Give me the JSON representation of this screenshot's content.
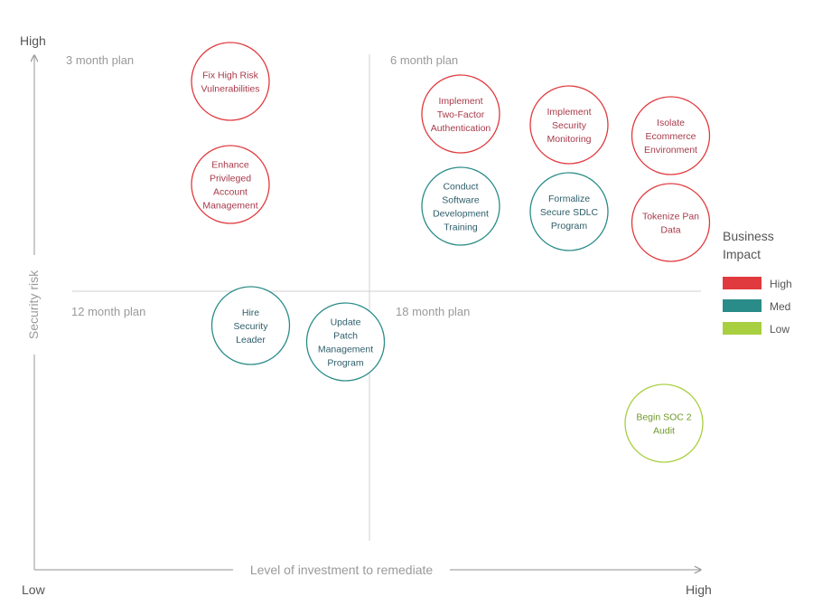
{
  "chart_data": {
    "type": "scatter",
    "xlabel": "Level of investment to remediate",
    "ylabel": "Security risk",
    "x_low": "Low",
    "x_high": "High",
    "y_high": "High",
    "xlim": [
      0,
      100
    ],
    "ylim": [
      0,
      100
    ],
    "grid": false,
    "quadrants": [
      {
        "label": "3 month plan",
        "position": "top-left"
      },
      {
        "label": "6 month plan",
        "position": "top-right"
      },
      {
        "label": "12 month plan",
        "position": "bottom-left"
      },
      {
        "label": "18 month plan",
        "position": "bottom-right"
      }
    ],
    "legend": {
      "title_lines": [
        "Business",
        "Impact"
      ],
      "placement": "right",
      "items": [
        {
          "key": "high",
          "label": "High",
          "color": "#e03a3e"
        },
        {
          "key": "med",
          "label": "Med",
          "color": "#2a8c88"
        },
        {
          "key": "low",
          "label": "Low",
          "color": "#a8cf3f"
        }
      ]
    },
    "points": [
      {
        "label_lines": [
          "Fix High Risk",
          "Vulnerabilities"
        ],
        "x": 26,
        "y": 90,
        "impact": "high"
      },
      {
        "label_lines": [
          "Enhance",
          "Privileged",
          "Account",
          "Management"
        ],
        "x": 26,
        "y": 71,
        "impact": "high"
      },
      {
        "label_lines": [
          "Implement",
          "Two-Factor",
          "Authentication"
        ],
        "x": 60,
        "y": 84,
        "impact": "high"
      },
      {
        "label_lines": [
          "Implement",
          "Security",
          "Monitoring"
        ],
        "x": 76,
        "y": 82,
        "impact": "high"
      },
      {
        "label_lines": [
          "Isolate",
          "Ecommerce",
          "Environment"
        ],
        "x": 91,
        "y": 80,
        "impact": "high"
      },
      {
        "label_lines": [
          "Conduct",
          "Software",
          "Development",
          "Training"
        ],
        "x": 60,
        "y": 67,
        "impact": "med"
      },
      {
        "label_lines": [
          "Formalize",
          "Secure SDLC",
          "Program"
        ],
        "x": 76,
        "y": 66,
        "impact": "med"
      },
      {
        "label_lines": [
          "Tokenize Pan",
          "Data"
        ],
        "x": 91,
        "y": 64,
        "impact": "high"
      },
      {
        "label_lines": [
          "Hire",
          "Security",
          "Leader"
        ],
        "x": 29,
        "y": 45,
        "impact": "med"
      },
      {
        "label_lines": [
          "Update",
          "Patch",
          "Management",
          "Program"
        ],
        "x": 43,
        "y": 42,
        "impact": "med"
      },
      {
        "label_lines": [
          "Begin SOC 2",
          "Audit"
        ],
        "x": 90,
        "y": 27,
        "impact": "low"
      }
    ]
  }
}
